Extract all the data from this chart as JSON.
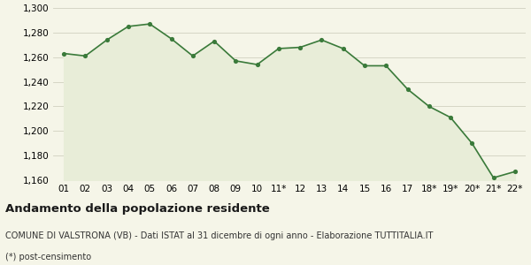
{
  "x_labels": [
    "01",
    "02",
    "03",
    "04",
    "05",
    "06",
    "07",
    "08",
    "09",
    "10",
    "11*",
    "12",
    "13",
    "14",
    "15",
    "16",
    "17",
    "18*",
    "19*",
    "20*",
    "21*",
    "22*"
  ],
  "y_values": [
    1263,
    1261,
    1274,
    1285,
    1287,
    1275,
    1261,
    1273,
    1257,
    1254,
    1267,
    1268,
    1274,
    1267,
    1253,
    1253,
    1234,
    1220,
    1211,
    1190,
    1162,
    1167
  ],
  "line_color": "#3a7a3a",
  "fill_color": "#e8edd8",
  "marker_color": "#3a7a3a",
  "background_color": "#f5f5e8",
  "grid_color": "#d0d0c0",
  "ylim_min": 1160,
  "ylim_max": 1300,
  "ytick_step": 20,
  "title": "Andamento della popolazione residente",
  "subtitle": "COMUNE DI VALSTRONA (VB) - Dati ISTAT al 31 dicembre di ogni anno - Elaborazione TUTTITALIA.IT",
  "footnote": "(*) post-censimento",
  "title_fontsize": 9.5,
  "subtitle_fontsize": 7,
  "footnote_fontsize": 7,
  "tick_fontsize": 7.5
}
